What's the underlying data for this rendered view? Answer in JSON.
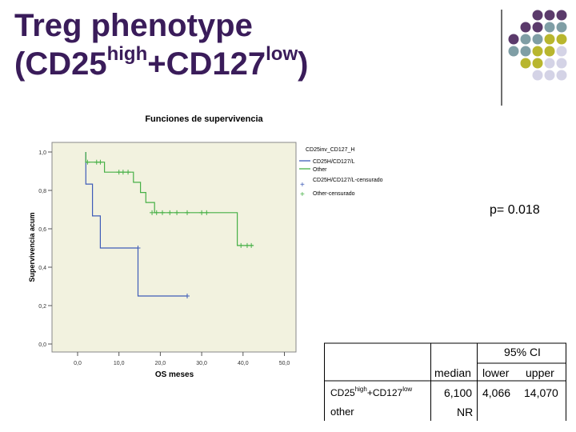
{
  "slide": {
    "title_line1": "Treg phenotype",
    "title_line2_a": "(CD25",
    "title_line2_sup1": "high",
    "title_line2_b": "+CD127",
    "title_line2_sup2": "low",
    "title_line2_c": ")",
    "p_value": "p= 0.018"
  },
  "decor": {
    "dot_colors": {
      "purple": "#5b3a6b",
      "teal": "#7f9ea5",
      "olive": "#b8b62e",
      "lavender": "#d4d3e6"
    },
    "dot_rows": [
      [
        "purple",
        "purple",
        "purple"
      ],
      [
        "purple",
        "purple",
        "teal",
        "teal"
      ],
      [
        "purple",
        "teal",
        "teal",
        "olive",
        "olive"
      ],
      [
        "teal",
        "teal",
        "olive",
        "olive",
        "lavender"
      ],
      [
        "olive",
        "olive",
        "lavender",
        "lavender"
      ],
      [
        "lavender",
        "lavender",
        "lavender"
      ]
    ]
  },
  "chart_data": {
    "type": "line",
    "subtype": "kaplan-meier",
    "title": "Funciones de supervivencia",
    "xlabel": "OS meses",
    "ylabel": "Supervivencia acum",
    "xlim": [
      0,
      50
    ],
    "ylim": [
      0,
      1
    ],
    "x_ticks": [
      "0,0",
      "10,0",
      "20,0",
      "30,0",
      "40,0",
      "50,0"
    ],
    "y_ticks": [
      "0,0",
      "0,2",
      "0,4",
      "0,6",
      "0,8",
      "1,0"
    ],
    "legend_title": "CD25inv_CD127_H",
    "legend": [
      "CD25H/CD127/L",
      "Other",
      "CD25H/CD127/L-censurado",
      "Other-censurado"
    ],
    "colors": {
      "plot_bg": "#f2f2df",
      "cd25": "#3e5cb8",
      "other": "#46b046"
    },
    "series": [
      {
        "name": "CD25H/CD127/L",
        "steps": [
          [
            2.0,
            1.0
          ],
          [
            2.0,
            0.833
          ],
          [
            3.6,
            0.833
          ],
          [
            3.6,
            0.667
          ],
          [
            5.5,
            0.667
          ],
          [
            5.5,
            0.5
          ],
          [
            14.6,
            0.5
          ],
          [
            14.6,
            0.25
          ],
          [
            26.5,
            0.25
          ]
        ],
        "censored": [
          [
            14.6,
            0.5
          ],
          [
            26.5,
            0.25
          ]
        ]
      },
      {
        "name": "Other",
        "steps": [
          [
            2.0,
            1.0
          ],
          [
            2.0,
            0.947
          ],
          [
            6.5,
            0.947
          ],
          [
            6.5,
            0.895
          ],
          [
            13.5,
            0.895
          ],
          [
            13.5,
            0.842
          ],
          [
            15.2,
            0.842
          ],
          [
            15.2,
            0.789
          ],
          [
            16.5,
            0.789
          ],
          [
            16.5,
            0.737
          ],
          [
            18.6,
            0.737
          ],
          [
            18.6,
            0.684
          ],
          [
            38.6,
            0.684
          ],
          [
            38.6,
            0.513
          ],
          [
            42.5,
            0.513
          ]
        ],
        "censored": [
          [
            2.4,
            0.947
          ],
          [
            4.6,
            0.947
          ],
          [
            5.5,
            0.947
          ],
          [
            10.0,
            0.895
          ],
          [
            11.0,
            0.895
          ],
          [
            12.2,
            0.895
          ],
          [
            18.0,
            0.684
          ],
          [
            19.1,
            0.684
          ],
          [
            20.5,
            0.684
          ],
          [
            22.3,
            0.684
          ],
          [
            24.0,
            0.684
          ],
          [
            26.5,
            0.684
          ],
          [
            30.0,
            0.684
          ],
          [
            31.2,
            0.684
          ],
          [
            39.5,
            0.513
          ],
          [
            41.0,
            0.513
          ],
          [
            42.0,
            0.513
          ]
        ]
      }
    ]
  },
  "table": {
    "ci_header": "95% CI",
    "headers": [
      "median",
      "lower",
      "upper"
    ],
    "rows": [
      {
        "label": "CD25",
        "label_sup1": "high",
        "label_mid": "+CD127",
        "label_sup2": "low",
        "median": "6,100",
        "lower": "4,066",
        "upper": "14,070"
      },
      {
        "label": "other",
        "median": "NR"
      }
    ]
  }
}
